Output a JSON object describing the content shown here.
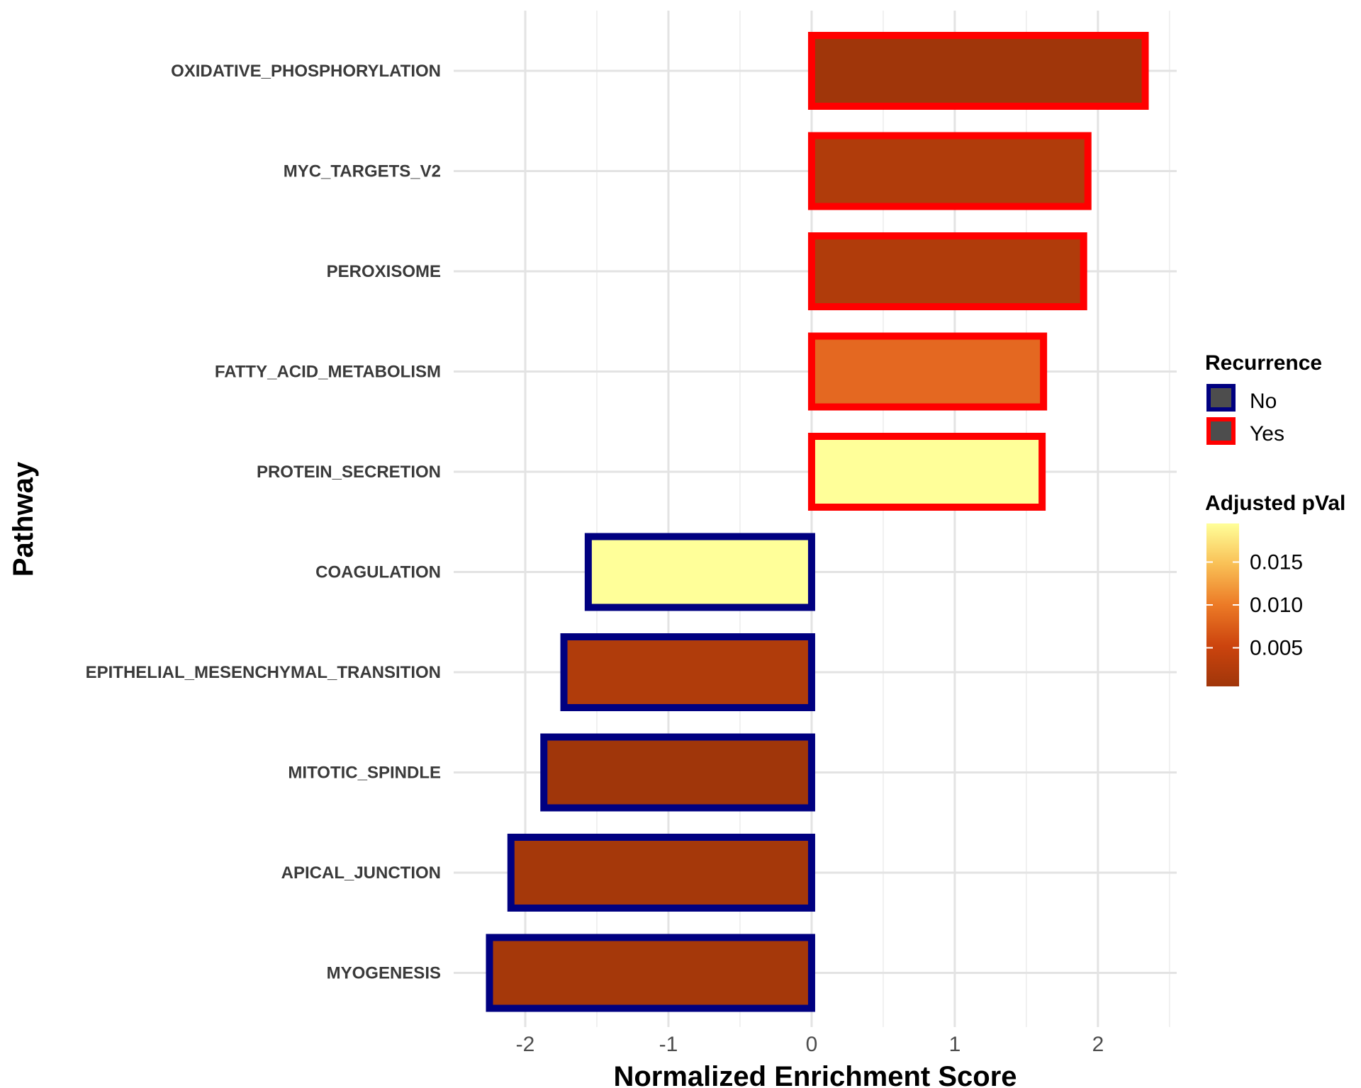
{
  "chart_data": {
    "type": "bar",
    "orientation": "horizontal",
    "xlabel": "Normalized Enrichment Score",
    "ylabel": "Pathway",
    "xlim": [
      -2.5,
      2.55
    ],
    "xticks": [
      -2,
      -1,
      0,
      1,
      2
    ],
    "xtick_labels": [
      "-2",
      "-1",
      "0",
      "1",
      "2"
    ],
    "grid": true,
    "categories": [
      "OXIDATIVE_PHOSPHORYLATION",
      "MYC_TARGETS_V2",
      "PEROXISOME",
      "FATTY_ACID_METABOLISM",
      "PROTEIN_SECRETION",
      "COAGULATION",
      "EPITHELIAL_MESENCHYMAL_TRANSITION",
      "MITOTIC_SPINDLE",
      "APICAL_JUNCTION",
      "MYOGENESIS"
    ],
    "values": [
      2.33,
      1.93,
      1.9,
      1.62,
      1.61,
      -1.56,
      -1.73,
      -1.87,
      -2.1,
      -2.25
    ],
    "recurrence": [
      "Yes",
      "Yes",
      "Yes",
      "Yes",
      "Yes",
      "No",
      "No",
      "No",
      "No",
      "No"
    ],
    "adjusted_pval": [
      0.0005,
      0.002,
      0.002,
      0.008,
      0.02,
      0.02,
      0.002,
      0.0005,
      0.001,
      0.001
    ],
    "legend": {
      "placement": "right",
      "recurrence": {
        "title": "Recurrence",
        "items": [
          {
            "label": "No",
            "outline_color": "#000080"
          },
          {
            "label": "Yes",
            "outline_color": "#ff0000"
          }
        ]
      },
      "pval": {
        "title": "Adjusted pVal",
        "range": [
          0.0005,
          0.0195
        ],
        "ticks": [
          0.005,
          0.01,
          0.015
        ],
        "tick_labels": [
          "0.005",
          "0.010",
          "0.015"
        ],
        "colors": [
          "#a0360a",
          "#d4480e",
          "#f07f2e",
          "#fbc05a",
          "#ffff99"
        ]
      }
    }
  }
}
